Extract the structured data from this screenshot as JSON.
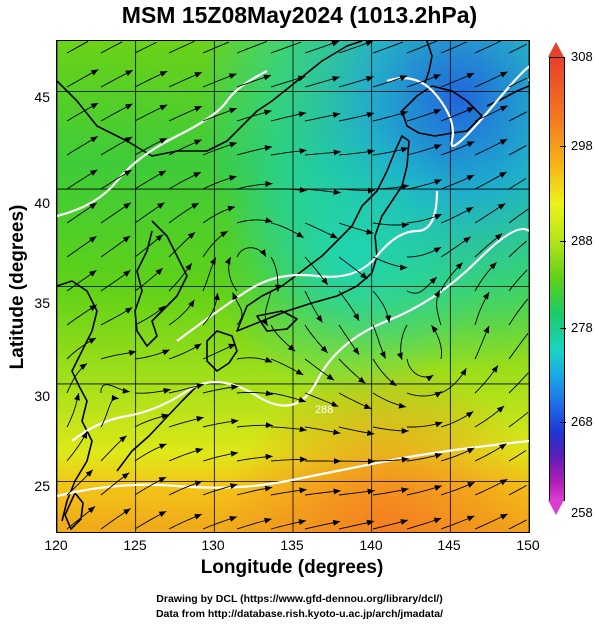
{
  "title": "MSM 15Z08May2024 (1013.2hPa)",
  "map": {
    "x_axis": {
      "label": "Longitude (degrees)",
      "ticks": [
        "120",
        "125",
        "130",
        "135",
        "140",
        "145",
        "150"
      ]
    },
    "y_axis": {
      "label": "Latitude  (degrees)",
      "ticks": [
        "25",
        "30",
        "35",
        "40",
        "45"
      ]
    },
    "lon_range": [
      120,
      150
    ],
    "lat_range": [
      22.4,
      47.6
    ],
    "field": "temperature (K) with wind streamlines",
    "contour_label": "288"
  },
  "colorbar": {
    "labels": [
      "308",
      "298",
      "288",
      "278",
      "268",
      "258"
    ],
    "range": [
      258,
      308
    ]
  },
  "credits": {
    "drawing": "Drawing by DCL (https://www.gfd-dennou.org/library/dcl/)",
    "data": "Data from http://database.rish.kyoto-u.ac.jp/arch/jmadata/"
  },
  "colors": {
    "ocean_warm": "#f5b417",
    "ocean_mid": "#b9e519",
    "land_green": "#5fd118",
    "cool_cyan": "#19d4c2",
    "cold_blue": "#1f5fe6",
    "contour": "#ffffff",
    "coastline": "#000000"
  }
}
